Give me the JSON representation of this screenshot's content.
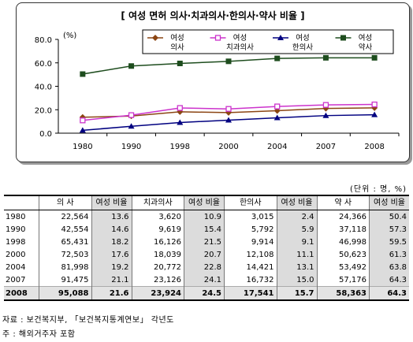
{
  "chart_data": {
    "type": "line",
    "title": "[ 여성 면허 의사·치과의사·한의사·약사 비율 ]",
    "ylabel_unit": "(%)",
    "ylim": [
      0,
      80
    ],
    "yticks": [
      "0.0",
      "20.0",
      "40.0",
      "60.0",
      "80.0"
    ],
    "categories": [
      "1980",
      "1990",
      "1998",
      "2000",
      "2004",
      "2007",
      "2008"
    ],
    "legend_position": "top-right",
    "series": [
      {
        "name": "여성 의사",
        "legend_lines": [
          "여성",
          "의사"
        ],
        "color": "#8b4513",
        "marker": "diamond",
        "values": [
          13.6,
          14.6,
          18.2,
          17.6,
          19.2,
          21.1,
          21.6
        ]
      },
      {
        "name": "여성 치과의사",
        "legend_lines": [
          "여성",
          "치과의사"
        ],
        "color": "#cc33cc",
        "marker": "square-open",
        "values": [
          10.9,
          15.4,
          21.5,
          20.7,
          22.8,
          24.1,
          24.5
        ]
      },
      {
        "name": "여성 한의사",
        "legend_lines": [
          "여성",
          "한의사"
        ],
        "color": "#000080",
        "marker": "triangle",
        "values": [
          2.4,
          5.9,
          9.1,
          11.1,
          13.1,
          15.0,
          15.7
        ]
      },
      {
        "name": "여성 약사",
        "legend_lines": [
          "여성",
          "약사"
        ],
        "color": "#1e4d1e",
        "marker": "square",
        "values": [
          50.4,
          57.3,
          59.5,
          61.3,
          63.8,
          64.3,
          64.3
        ]
      }
    ]
  },
  "table": {
    "unit": "(단위 : 명, %)",
    "headers": [
      "",
      "의 사",
      "여성 비율",
      "치과의사",
      "여성 비율",
      "한의사",
      "여성 비율",
      "약 사",
      "여성 비율"
    ],
    "rows": [
      [
        "1980",
        "22,564",
        "13.6",
        "3,620",
        "10.9",
        "3,015",
        "2.4",
        "24,366",
        "50.4"
      ],
      [
        "1990",
        "42,554",
        "14.6",
        "9,619",
        "15.4",
        "5,792",
        "5.9",
        "37,118",
        "57.3"
      ],
      [
        "1998",
        "65,431",
        "18.2",
        "16,126",
        "21.5",
        "9,914",
        "9.1",
        "46,998",
        "59.5"
      ],
      [
        "2000",
        "72,503",
        "17.6",
        "18,039",
        "20.7",
        "12,108",
        "11.1",
        "50,623",
        "61.3"
      ],
      [
        "2004",
        "81,998",
        "19.2",
        "20,772",
        "22.8",
        "14,421",
        "13.1",
        "53,492",
        "63.8"
      ],
      [
        "2007",
        "91,475",
        "21.1",
        "23,126",
        "24.1",
        "16,732",
        "15.0",
        "57,176",
        "64.3"
      ],
      [
        "2008",
        "95,088",
        "21.6",
        "23,924",
        "24.5",
        "17,541",
        "15.7",
        "58,363",
        "64.3"
      ]
    ]
  },
  "notes": {
    "source": "자료 : 보건복지부, 「보건복지통계연보」 각년도",
    "note": "주 : 해외거주자 포함"
  }
}
